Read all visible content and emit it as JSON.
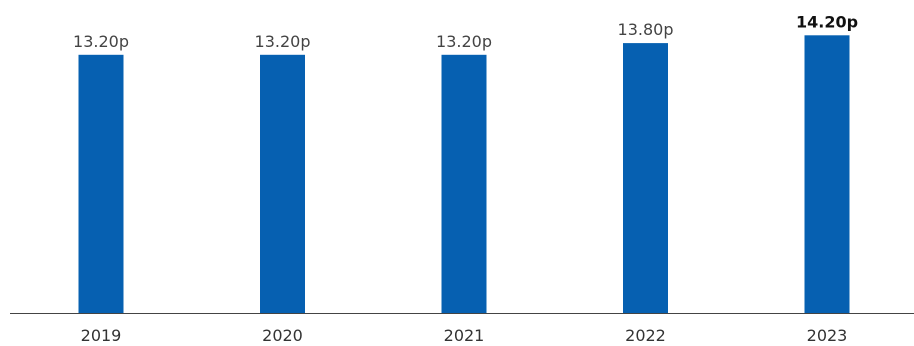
{
  "chart_data": {
    "type": "bar",
    "categories": [
      "2019",
      "2020",
      "2021",
      "2022",
      "2023"
    ],
    "values": [
      13.2,
      13.2,
      13.2,
      13.8,
      14.2
    ],
    "data_labels": [
      "13.20p",
      "13.20p",
      "13.20p",
      "13.80p",
      "14.20p"
    ],
    "highlighted_index": 4,
    "title": "",
    "xlabel": "",
    "ylabel": "",
    "ylim": [
      0,
      14.98
    ],
    "grid": false,
    "colors": {
      "bar": "#0660b1",
      "axis": "#444444"
    }
  }
}
